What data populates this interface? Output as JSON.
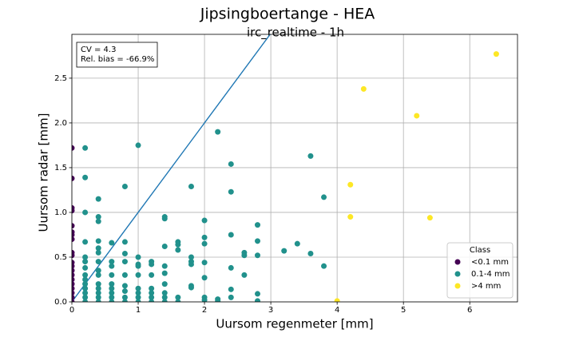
{
  "chart_data": {
    "type": "scatter",
    "title": "Jipsingboertange - HEA",
    "subtitle": "irc_realtime - 1h",
    "x_label": "Uursom regenmeter [mm]",
    "y_label": "Uursom radar [mm]",
    "annotations": [
      "CV = 4.3",
      "Rel. bias = -66.9%"
    ],
    "legend_title": "Class",
    "legend": "lower right",
    "grid": true,
    "identity_line": true,
    "identity_color": "#1f77b4",
    "xlim": [
      0,
      6.72
    ],
    "ylim": [
      0,
      2.99
    ],
    "xticks": [
      0,
      1,
      2,
      3,
      4,
      5,
      6
    ],
    "yticks": [
      {
        "value": 0,
        "label": "0.0"
      },
      {
        "value": 0.5,
        "label": "0.5"
      },
      {
        "value": 1,
        "label": "1.0"
      },
      {
        "value": 1.5,
        "label": "1.5"
      },
      {
        "value": 2,
        "label": "2.0"
      },
      {
        "value": 2.5,
        "label": "2.5"
      }
    ],
    "series": [
      {
        "name": "<0.1 mm",
        "color": "#440154",
        "x": [
          0,
          0,
          0,
          0,
          0,
          0,
          0,
          0,
          0,
          0,
          0,
          0,
          0,
          0,
          0,
          0,
          0,
          0,
          0,
          0
        ],
        "y": [
          1.72,
          1.38,
          1.05,
          1.02,
          0.85,
          0.78,
          0.75,
          0.7,
          0.55,
          0.52,
          0.44,
          0.4,
          0.35,
          0.3,
          0.25,
          0.2,
          0.15,
          0.1,
          0.05,
          0
        ]
      },
      {
        "name": "0.1-4 mm",
        "color": "#21918c",
        "x": [
          0.2,
          0.2,
          0.2,
          0.2,
          0.2,
          0.2,
          0.2,
          0.2,
          0.2,
          0.2,
          0.2,
          0.2,
          0.2,
          0.2,
          0.4,
          0.4,
          0.4,
          0.4,
          0.4,
          0.4,
          0.4,
          0.4,
          0.4,
          0.4,
          0.4,
          0.4,
          0.4,
          0.4,
          0.6,
          0.6,
          0.6,
          0.6,
          0.6,
          0.6,
          0.6,
          0.6,
          0.6,
          0.8,
          0.8,
          0.8,
          0.8,
          0.8,
          0.8,
          0.8,
          0.8,
          0.8,
          1,
          1,
          1,
          1,
          1,
          1,
          1,
          1,
          1,
          1.2,
          1.2,
          1.2,
          1.2,
          1.2,
          1.2,
          1.2,
          1.4,
          1.4,
          1.4,
          1.4,
          1.4,
          1.4,
          1.4,
          1.4,
          1.4,
          1.6,
          1.6,
          1.6,
          1.6,
          1.6,
          1.8,
          1.8,
          1.8,
          1.8,
          1.8,
          1.8,
          2,
          2,
          2,
          2,
          2,
          2,
          2,
          2.2,
          2.2,
          2.2,
          2.4,
          2.4,
          2.4,
          2.4,
          2.4,
          2.4,
          2.6,
          2.6,
          2.6,
          2.8,
          2.8,
          2.8,
          2.8,
          2.8,
          3.2,
          3.4,
          3.6,
          3.6,
          3.8,
          3.8
        ],
        "y": [
          1.72,
          1.39,
          1,
          0.67,
          0.5,
          0.45,
          0.38,
          0.3,
          0.25,
          0.2,
          0.15,
          0.1,
          0.05,
          0,
          1.15,
          0.95,
          0.9,
          0.68,
          0.6,
          0.55,
          0.45,
          0.35,
          0.3,
          0.2,
          0.15,
          0.1,
          0.05,
          0,
          0.66,
          0.45,
          0.4,
          0.3,
          0.2,
          0.15,
          0.1,
          0.05,
          0,
          1.29,
          0.67,
          0.54,
          0.45,
          0.3,
          0.18,
          0.12,
          0.05,
          0,
          1.75,
          0.5,
          0.42,
          0.4,
          0.3,
          0.15,
          0.1,
          0.05,
          0,
          0.45,
          0.42,
          0.3,
          0.15,
          0.1,
          0.05,
          0,
          0.95,
          0.93,
          0.62,
          0.4,
          0.32,
          0.2,
          0.1,
          0.05,
          0,
          0.67,
          0.64,
          0.58,
          0.05,
          0,
          1.29,
          0.5,
          0.45,
          0.42,
          0.18,
          0.16,
          0.91,
          0.72,
          0.65,
          0.44,
          0.27,
          0.05,
          0.02,
          1.9,
          0.03,
          0.01,
          1.54,
          1.23,
          0.75,
          0.38,
          0.14,
          0.05,
          0.55,
          0.52,
          0.3,
          0.86,
          0.68,
          0.52,
          0.09,
          0.01,
          0.57,
          0.65,
          1.63,
          0.54,
          1.17,
          0.4
        ]
      },
      {
        "name": ">4 mm",
        "color": "#fde725",
        "x": [
          6.4,
          4.4,
          5.2,
          4.2,
          4.2,
          5.4,
          4
        ],
        "y": [
          2.77,
          2.38,
          2.08,
          1.31,
          0.95,
          0.94,
          0.01
        ]
      }
    ]
  }
}
